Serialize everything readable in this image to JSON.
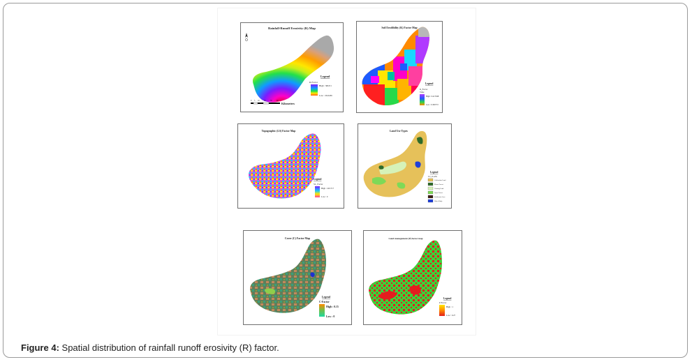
{
  "caption": {
    "label": "Figure 4:",
    "text": " Spatial distribution of rainfall runoff erosivity (R) factor."
  },
  "maps": [
    {
      "title": "Rainfall-Runoff Erosivity (R) Map",
      "legend_title": "Legend",
      "legend_field": "R-Factor",
      "high": "High : 3818.3",
      "low": "Low : 2616.86",
      "scale_unit": "Kilometers",
      "scale_ticks": [
        "0",
        "5",
        "10",
        "20",
        "30",
        "40"
      ]
    },
    {
      "title": "Soil Erodibility (K) Factor Map",
      "legend_title": "Legend",
      "legend_field": "K_Factor",
      "legend_sub": "Value",
      "high": "High : 0.417048",
      "low": "Low : 0.300772"
    },
    {
      "title": "Topographic (LS) Factor Map",
      "legend_title": "Legend",
      "legend_field": "SL_Factor",
      "high": "High : 243.717",
      "low": "Low : 0"
    },
    {
      "title": "Land Use Types",
      "legend_title": "Legend",
      "legend_field": "LU_CLASS",
      "classes": [
        {
          "label": "Cultivation Land",
          "color": "#e6c15a"
        },
        {
          "label": "Dense Forest",
          "color": "#2f6b2a"
        },
        {
          "label": "Grazing Land",
          "color": "#d6f2b8"
        },
        {
          "label": "Open Forest",
          "color": "#7ed957"
        },
        {
          "label": "Settlement Area",
          "color": "#3b1f14"
        },
        {
          "label": "Water Body",
          "color": "#1f3fd9"
        }
      ]
    },
    {
      "title": "Cover (C) Factor Map",
      "legend_title": "Legend",
      "legend_field": "C-Factor",
      "high": "High : 0.15",
      "low": "Low : 0"
    },
    {
      "title": "Land management (P) factor map",
      "legend_title": "Legend",
      "legend_field": "P-Factor",
      "high": "High : 1",
      "low": "Low : 0.27"
    }
  ]
}
